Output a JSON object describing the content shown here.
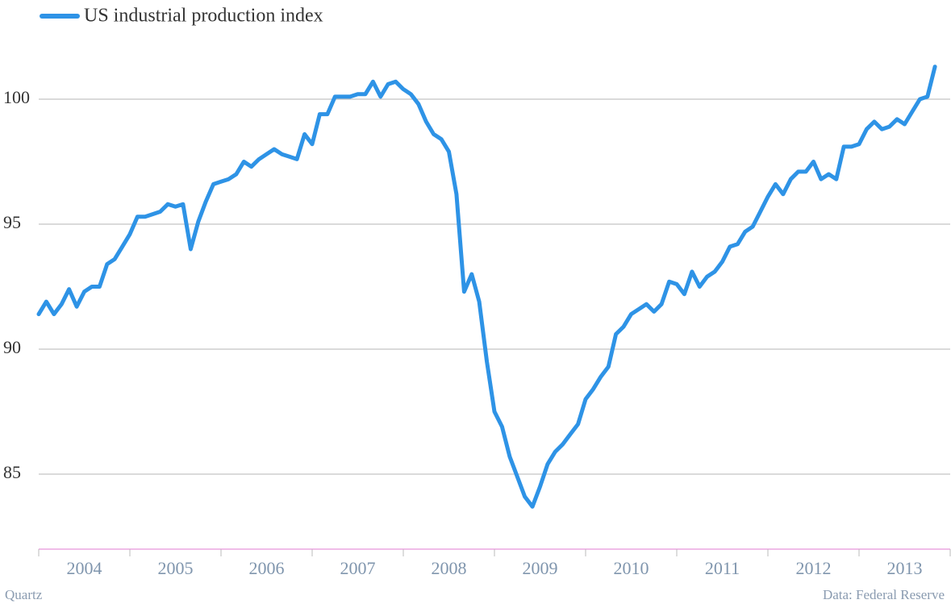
{
  "chart_data": {
    "type": "line",
    "series": [
      {
        "name": "US industrial production index",
        "color": "#2e93e6",
        "values": [
          91.4,
          91.9,
          91.4,
          91.8,
          92.4,
          91.7,
          92.3,
          92.5,
          92.5,
          93.4,
          93.6,
          94.1,
          94.6,
          95.3,
          95.3,
          95.4,
          95.5,
          95.8,
          95.7,
          95.8,
          94.0,
          95.1,
          95.9,
          96.6,
          96.7,
          96.8,
          97.0,
          97.5,
          97.3,
          97.6,
          97.8,
          98.0,
          97.8,
          97.7,
          97.6,
          98.6,
          98.2,
          99.4,
          99.4,
          100.1,
          100.1,
          100.1,
          100.2,
          100.2,
          100.7,
          100.1,
          100.6,
          100.7,
          100.4,
          100.2,
          99.8,
          99.1,
          98.6,
          98.4,
          97.9,
          96.2,
          92.3,
          93.0,
          91.9,
          89.5,
          87.5,
          86.9,
          85.7,
          84.9,
          84.1,
          83.7,
          84.5,
          85.4,
          85.9,
          86.2,
          86.6,
          87.0,
          88.0,
          88.4,
          88.9,
          89.3,
          90.6,
          90.9,
          91.4,
          91.6,
          91.8,
          91.5,
          91.8,
          92.7,
          92.6,
          92.2,
          93.1,
          92.5,
          92.9,
          93.1,
          93.5,
          94.1,
          94.2,
          94.7,
          94.9,
          95.5,
          96.1,
          96.6,
          96.2,
          96.8,
          97.1,
          97.1,
          97.5,
          96.8,
          97.0,
          96.8,
          98.1,
          98.1,
          98.2,
          98.8,
          99.1,
          98.8,
          98.9,
          99.2,
          99.0,
          99.5,
          100.0,
          100.1,
          101.3
        ]
      }
    ],
    "x": [
      2004,
      2004.083,
      2004.167,
      2004.25,
      2004.333,
      2004.417,
      2004.5,
      2004.583,
      2004.667,
      2004.75,
      2004.833,
      2004.917,
      2005,
      2005.083,
      2005.167,
      2005.25,
      2005.333,
      2005.417,
      2005.5,
      2005.583,
      2005.667,
      2005.75,
      2005.833,
      2005.917,
      2006,
      2006.083,
      2006.167,
      2006.25,
      2006.333,
      2006.417,
      2006.5,
      2006.583,
      2006.667,
      2006.75,
      2006.833,
      2006.917,
      2007,
      2007.083,
      2007.167,
      2007.25,
      2007.333,
      2007.417,
      2007.5,
      2007.583,
      2007.667,
      2007.75,
      2007.833,
      2007.917,
      2008,
      2008.083,
      2008.167,
      2008.25,
      2008.333,
      2008.417,
      2008.5,
      2008.583,
      2008.667,
      2008.75,
      2008.833,
      2008.917,
      2009,
      2009.083,
      2009.167,
      2009.25,
      2009.333,
      2009.417,
      2009.5,
      2009.583,
      2009.667,
      2009.75,
      2009.833,
      2009.917,
      2010,
      2010.083,
      2010.167,
      2010.25,
      2010.333,
      2010.417,
      2010.5,
      2010.583,
      2010.667,
      2010.75,
      2010.833,
      2010.917,
      2011,
      2011.083,
      2011.167,
      2011.25,
      2011.333,
      2011.417,
      2011.5,
      2011.583,
      2011.667,
      2011.75,
      2011.833,
      2011.917,
      2012,
      2012.083,
      2012.167,
      2012.25,
      2012.333,
      2012.417,
      2012.5,
      2012.583,
      2012.667,
      2012.75,
      2012.833,
      2012.917,
      2013,
      2013.083,
      2013.167,
      2013.25,
      2013.333,
      2013.417,
      2013.5,
      2013.583,
      2013.667,
      2013.75,
      2013.833
    ],
    "categories": [
      "2004",
      "2005",
      "2006",
      "2007",
      "2008",
      "2009",
      "2010",
      "2011",
      "2012",
      "2013"
    ],
    "xlim": [
      2004,
      2014
    ],
    "ylim": [
      82,
      102
    ],
    "yticks": [
      85,
      90,
      95,
      100
    ],
    "grid": true,
    "source": "Data: Federal Reserve",
    "brand": "Quartz"
  }
}
